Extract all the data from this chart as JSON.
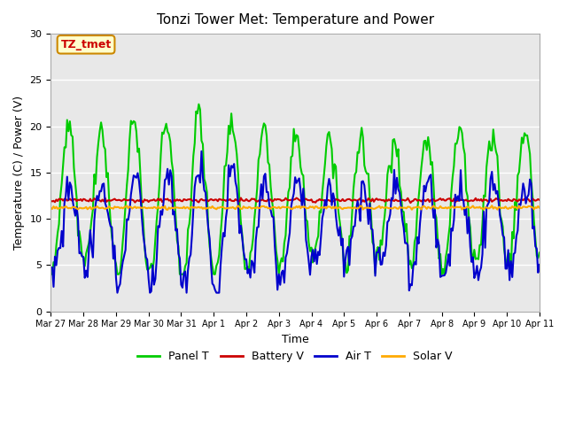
{
  "title": "Tonzi Tower Met: Temperature and Power",
  "xlabel": "Time",
  "ylabel": "Temperature (C) / Power (V)",
  "ylim": [
    0,
    30
  ],
  "xlim": [
    0,
    336
  ],
  "bg_color": "#e8e8e8",
  "plot_bg_color": "#e8e8e8",
  "annotation_text": "TZ_tmet",
  "annotation_bg": "#ffffcc",
  "annotation_border": "#cc8800",
  "annotation_text_color": "#cc0000",
  "tick_labels": [
    "Mar 27",
    "Mar 28",
    "Mar 29",
    "Mar 30",
    "Mar 31",
    "Apr 1",
    "Apr 2",
    "Apr 3",
    "Apr 4",
    "Apr 5",
    "Apr 6",
    "Apr 7",
    "Apr 8",
    "Apr 9",
    "Apr 10",
    "Apr 11"
  ],
  "tick_positions": [
    0,
    24,
    48,
    72,
    96,
    120,
    144,
    168,
    192,
    216,
    240,
    264,
    288,
    312,
    336,
    360
  ],
  "grid_yticks": [
    0,
    5,
    10,
    15,
    20,
    25,
    30
  ],
  "series": {
    "panel_t": {
      "color": "#00cc00",
      "label": "Panel T",
      "linewidth": 1.5
    },
    "battery_v": {
      "color": "#cc0000",
      "label": "Battery V",
      "linewidth": 1.5
    },
    "air_t": {
      "color": "#0000cc",
      "label": "Air T",
      "linewidth": 1.5
    },
    "solar_v": {
      "color": "#ffaa00",
      "label": "Solar V",
      "linewidth": 1.5
    }
  }
}
